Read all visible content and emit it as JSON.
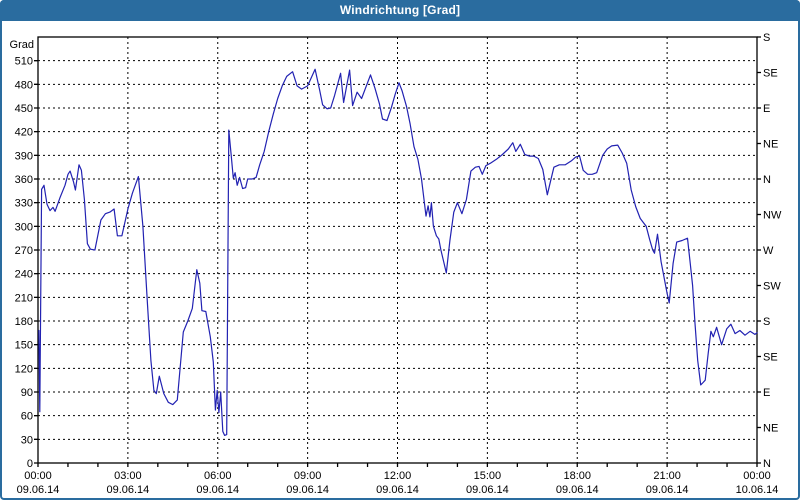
{
  "window": {
    "title": "Windrichtung [Grad]"
  },
  "colors": {
    "titlebar": "#2a6c9f",
    "window_border": "#2a6c9f",
    "background": "#ffffff",
    "axis": "#000000",
    "grid": "#000000",
    "line": "#2222b2",
    "text": "#000000"
  },
  "chart_data": {
    "type": "line",
    "title": "Windrichtung [Grad]",
    "ylabel": "Grad",
    "x_unit": "hours",
    "xlim": [
      0,
      24
    ],
    "ylim": [
      0,
      540
    ],
    "grid": true,
    "legend": "none",
    "x_ticks": [
      {
        "t": 0,
        "time": "00:00",
        "date": "09.06.14"
      },
      {
        "t": 3,
        "time": "03:00",
        "date": "09.06.14"
      },
      {
        "t": 6,
        "time": "06:00",
        "date": "09.06.14"
      },
      {
        "t": 9,
        "time": "09:00",
        "date": "09.06.14"
      },
      {
        "t": 12,
        "time": "12:00",
        "date": "09.06.14"
      },
      {
        "t": 15,
        "time": "15:00",
        "date": "09.06.14"
      },
      {
        "t": 18,
        "time": "18:00",
        "date": "09.06.14"
      },
      {
        "t": 21,
        "time": "21:00",
        "date": "09.06.14"
      },
      {
        "t": 24,
        "time": "00:00",
        "date": "10.06.14"
      }
    ],
    "y_ticks_left": [
      0,
      30,
      60,
      90,
      120,
      150,
      180,
      210,
      240,
      270,
      300,
      330,
      360,
      390,
      420,
      450,
      480,
      510
    ],
    "y_ticks_right": [
      {
        "v": 0,
        "label": "N"
      },
      {
        "v": 45,
        "label": "NE"
      },
      {
        "v": 90,
        "label": "E"
      },
      {
        "v": 135,
        "label": "SE"
      },
      {
        "v": 180,
        "label": "S"
      },
      {
        "v": 225,
        "label": "SW"
      },
      {
        "v": 270,
        "label": "W"
      },
      {
        "v": 315,
        "label": "NW"
      },
      {
        "v": 360,
        "label": "N"
      },
      {
        "v": 405,
        "label": "NE"
      },
      {
        "v": 450,
        "label": "E"
      },
      {
        "v": 495,
        "label": "SE"
      },
      {
        "v": 540,
        "label": "S"
      }
    ],
    "series": [
      {
        "name": "Windrichtung",
        "color": "#2222b2",
        "points": [
          [
            0.03,
            168
          ],
          [
            0.06,
            65
          ],
          [
            0.12,
            347
          ],
          [
            0.2,
            352
          ],
          [
            0.3,
            328
          ],
          [
            0.4,
            320
          ],
          [
            0.5,
            324
          ],
          [
            0.57,
            319
          ],
          [
            0.73,
            336
          ],
          [
            0.9,
            352
          ],
          [
            1.0,
            366
          ],
          [
            1.07,
            370
          ],
          [
            1.18,
            357
          ],
          [
            1.25,
            346
          ],
          [
            1.37,
            378
          ],
          [
            1.45,
            371
          ],
          [
            1.55,
            334
          ],
          [
            1.65,
            278
          ],
          [
            1.75,
            271
          ],
          [
            1.9,
            270
          ],
          [
            2.1,
            308
          ],
          [
            2.25,
            316
          ],
          [
            2.4,
            318
          ],
          [
            2.54,
            322
          ],
          [
            2.65,
            288
          ],
          [
            2.8,
            288
          ],
          [
            3.0,
            322
          ],
          [
            3.15,
            342
          ],
          [
            3.35,
            363
          ],
          [
            3.5,
            300
          ],
          [
            3.65,
            205
          ],
          [
            3.77,
            130
          ],
          [
            3.87,
            92
          ],
          [
            3.95,
            88
          ],
          [
            4.05,
            110
          ],
          [
            4.2,
            88
          ],
          [
            4.35,
            77
          ],
          [
            4.5,
            74
          ],
          [
            4.65,
            80
          ],
          [
            4.85,
            166
          ],
          [
            5.0,
            180
          ],
          [
            5.15,
            196
          ],
          [
            5.3,
            245
          ],
          [
            5.4,
            228
          ],
          [
            5.47,
            193
          ],
          [
            5.6,
            192
          ],
          [
            5.75,
            160
          ],
          [
            5.85,
            128
          ],
          [
            5.92,
            67
          ],
          [
            5.98,
            92
          ],
          [
            6.04,
            64
          ],
          [
            6.1,
            90
          ],
          [
            6.17,
            40
          ],
          [
            6.23,
            35
          ],
          [
            6.3,
            36
          ],
          [
            6.37,
            422
          ],
          [
            6.45,
            390
          ],
          [
            6.52,
            361
          ],
          [
            6.58,
            368
          ],
          [
            6.65,
            352
          ],
          [
            6.73,
            362
          ],
          [
            6.83,
            348
          ],
          [
            6.93,
            349
          ],
          [
            7.0,
            360
          ],
          [
            7.15,
            360
          ],
          [
            7.28,
            362
          ],
          [
            7.4,
            378
          ],
          [
            7.55,
            395
          ],
          [
            7.7,
            420
          ],
          [
            7.85,
            442
          ],
          [
            8.0,
            462
          ],
          [
            8.15,
            478
          ],
          [
            8.3,
            490
          ],
          [
            8.5,
            496
          ],
          [
            8.65,
            478
          ],
          [
            8.8,
            474
          ],
          [
            9.0,
            478
          ],
          [
            9.25,
            499
          ],
          [
            9.4,
            473
          ],
          [
            9.5,
            454
          ],
          [
            9.65,
            449
          ],
          [
            9.77,
            450
          ],
          [
            9.9,
            466
          ],
          [
            10.1,
            494
          ],
          [
            10.2,
            457
          ],
          [
            10.4,
            498
          ],
          [
            10.5,
            453
          ],
          [
            10.65,
            470
          ],
          [
            10.8,
            462
          ],
          [
            11.1,
            492
          ],
          [
            11.25,
            475
          ],
          [
            11.4,
            455
          ],
          [
            11.5,
            436
          ],
          [
            11.65,
            434
          ],
          [
            11.8,
            451
          ],
          [
            11.92,
            467
          ],
          [
            11.98,
            474
          ],
          [
            12.05,
            482
          ],
          [
            12.15,
            472
          ],
          [
            12.3,
            452
          ],
          [
            12.42,
            430
          ],
          [
            12.55,
            401
          ],
          [
            12.68,
            385
          ],
          [
            12.8,
            360
          ],
          [
            12.88,
            335
          ],
          [
            12.95,
            313
          ],
          [
            13.02,
            326
          ],
          [
            13.08,
            312
          ],
          [
            13.13,
            330
          ],
          [
            13.2,
            300
          ],
          [
            13.3,
            288
          ],
          [
            13.38,
            284
          ],
          [
            13.45,
            270
          ],
          [
            13.55,
            254
          ],
          [
            13.63,
            241
          ],
          [
            13.75,
            282
          ],
          [
            13.88,
            318
          ],
          [
            14.0,
            330
          ],
          [
            14.15,
            316
          ],
          [
            14.3,
            334
          ],
          [
            14.45,
            370
          ],
          [
            14.6,
            375
          ],
          [
            14.72,
            376
          ],
          [
            14.83,
            366
          ],
          [
            14.95,
            377
          ],
          [
            15.1,
            380
          ],
          [
            15.3,
            385
          ],
          [
            15.5,
            391
          ],
          [
            15.7,
            398
          ],
          [
            15.85,
            406
          ],
          [
            15.95,
            395
          ],
          [
            16.1,
            404
          ],
          [
            16.25,
            391
          ],
          [
            16.4,
            389
          ],
          [
            16.55,
            389
          ],
          [
            16.7,
            386
          ],
          [
            16.85,
            372
          ],
          [
            17.0,
            340
          ],
          [
            17.1,
            356
          ],
          [
            17.22,
            375
          ],
          [
            17.4,
            378
          ],
          [
            17.6,
            378
          ],
          [
            17.8,
            383
          ],
          [
            17.95,
            388
          ],
          [
            18.08,
            389
          ],
          [
            18.2,
            371
          ],
          [
            18.35,
            366
          ],
          [
            18.5,
            366
          ],
          [
            18.65,
            368
          ],
          [
            18.85,
            390
          ],
          [
            19.0,
            398
          ],
          [
            19.15,
            402
          ],
          [
            19.35,
            403
          ],
          [
            19.5,
            393
          ],
          [
            19.65,
            380
          ],
          [
            19.8,
            346
          ],
          [
            19.95,
            325
          ],
          [
            20.1,
            310
          ],
          [
            20.2,
            305
          ],
          [
            20.3,
            300
          ],
          [
            20.42,
            283
          ],
          [
            20.52,
            270
          ],
          [
            20.58,
            266
          ],
          [
            20.68,
            290
          ],
          [
            20.8,
            255
          ],
          [
            20.9,
            235
          ],
          [
            21.0,
            215
          ],
          [
            21.07,
            203
          ],
          [
            21.2,
            253
          ],
          [
            21.32,
            280
          ],
          [
            21.5,
            282
          ],
          [
            21.68,
            285
          ],
          [
            21.78,
            250
          ],
          [
            21.85,
            225
          ],
          [
            21.93,
            177
          ],
          [
            22.02,
            130
          ],
          [
            22.12,
            99
          ],
          [
            22.2,
            102
          ],
          [
            22.27,
            105
          ],
          [
            22.37,
            139
          ],
          [
            22.46,
            167
          ],
          [
            22.54,
            160
          ],
          [
            22.65,
            172
          ],
          [
            22.82,
            150
          ],
          [
            22.99,
            170
          ],
          [
            23.13,
            176
          ],
          [
            23.27,
            164
          ],
          [
            23.43,
            168
          ],
          [
            23.6,
            162
          ],
          [
            23.77,
            167
          ],
          [
            23.93,
            163
          ],
          [
            24.0,
            165
          ]
        ]
      }
    ]
  }
}
